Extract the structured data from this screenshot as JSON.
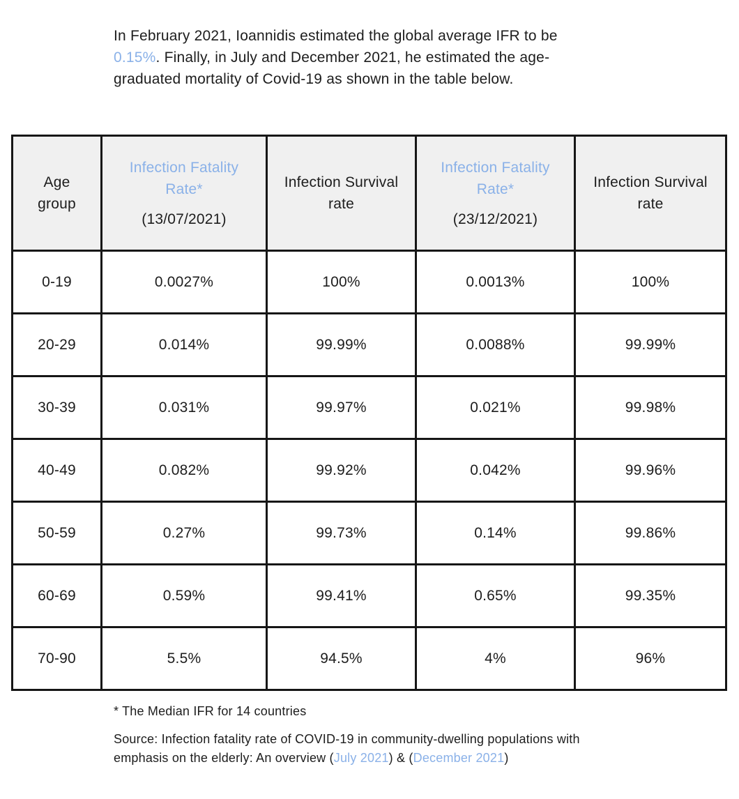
{
  "accent_color": "#8ab1e8",
  "header_bg_color": "#f0f0f0",
  "border_color": "#161616",
  "intro": {
    "line1": "In February 2021, Ioannidis estimated the global average IFR to be",
    "ifr_link": "0.15%",
    "line2_rest": ". Finally, in July and December 2021, he estimated the age-",
    "line3": "graduated mortality of Covid-19 as shown in the table below."
  },
  "table": {
    "columns": [
      {
        "title": "Age group"
      },
      {
        "title": "Infection Fatality Rate*",
        "subtitle": "(13/07/2021)"
      },
      {
        "title": "Infection Survival rate"
      },
      {
        "title": "Infection Fatality Rate*",
        "subtitle": "(23/12/2021)"
      },
      {
        "title": "Infection Survival rate"
      }
    ],
    "rows": [
      [
        "0-19",
        "0.0027%",
        "100%",
        "0.0013%",
        "100%"
      ],
      [
        "20-29",
        "0.014%",
        "99.99%",
        "0.0088%",
        "99.99%"
      ],
      [
        "30-39",
        "0.031%",
        "99.97%",
        "0.021%",
        "99.98%"
      ],
      [
        "40-49",
        "0.082%",
        "99.92%",
        "0.042%",
        "99.96%"
      ],
      [
        "50-59",
        "0.27%",
        "99.73%",
        "0.14%",
        "99.86%"
      ],
      [
        "60-69",
        "0.59%",
        "99.41%",
        "0.65%",
        "99.35%"
      ],
      [
        "70-90",
        "5.5%",
        "94.5%",
        "4%",
        "96%"
      ]
    ]
  },
  "footer": {
    "footnote": "* The Median IFR for 14 countries",
    "source_line1": "Source: Infection fatality rate of COVID-19 in community-dwelling populations with",
    "source_line2_prefix": "emphasis on the elderly: An overview (",
    "link_july": "July 2021",
    "source_mid": ") & (",
    "link_december": "December 2021",
    "source_suffix": ")"
  }
}
